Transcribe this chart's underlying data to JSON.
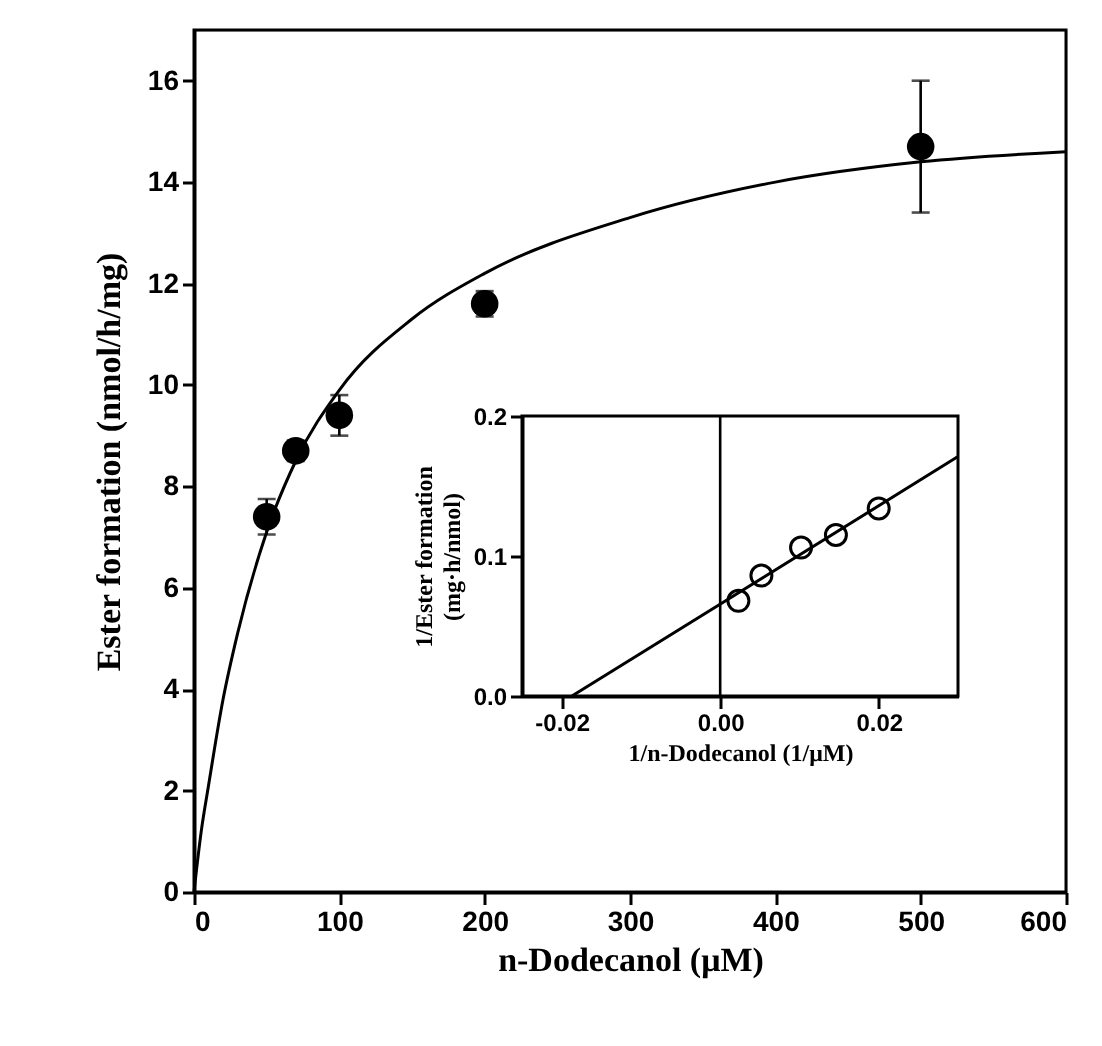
{
  "chart_data": [
    {
      "type": "scatter",
      "xlabel": "n-Dodecanol (μM)",
      "ylabel": "Ester formation (nmol/h/mg)",
      "xlim": [
        0,
        600
      ],
      "ylim": [
        0,
        17
      ],
      "xticks": [
        0,
        100,
        200,
        300,
        400,
        500,
        600
      ],
      "yticks": [
        0,
        2,
        4,
        6,
        8,
        10,
        12,
        14,
        16
      ],
      "grid": false,
      "marker": "circle",
      "series": [
        {
          "color": "#000000",
          "x": [
            50,
            70,
            100,
            200,
            500
          ],
          "values": [
            7.4,
            8.7,
            9.4,
            11.6,
            14.7
          ],
          "errors": [
            [
              7.05,
              7.75
            ],
            [
              8.5,
              8.9
            ],
            [
              9.0,
              9.8
            ],
            [
              11.35,
              11.85
            ],
            [
              13.4,
              16.0
            ]
          ]
        },
        {
          "type": "line",
          "color": "#000000",
          "marker": "none",
          "x": [
            0,
            5,
            10,
            20,
            30,
            50,
            70,
            100,
            150,
            200,
            300,
            400,
            500,
            600
          ],
          "values": [
            0,
            1.2,
            2.1,
            3.8,
            5.1,
            7.1,
            8.5,
            9.9,
            11.3,
            12.2,
            13.3,
            14.0,
            14.4,
            14.6
          ]
        }
      ]
    },
    {
      "type": "scatter",
      "xlabel": "1/n-Dodecanol (1/μM)",
      "ylabel": "1/Ester formation\n(mg·h/nmol)",
      "xlim": [
        -0.025,
        0.03
      ],
      "ylim": [
        0,
        0.2
      ],
      "xticks": [
        {
          "value": -0.02,
          "label": "-0.02"
        },
        {
          "value": 0,
          "label": "0.00"
        },
        {
          "value": 0.02,
          "label": "0.02"
        }
      ],
      "yticks": [
        {
          "value": 0,
          "label": "0.0"
        },
        0.1,
        0.2
      ],
      "grid": false,
      "marker": "circle",
      "series": [
        {
          "color": "#000000",
          "x": [
            0.0023,
            0.0052,
            0.0102,
            0.0146,
            0.02
          ],
          "values": [
            0.068,
            0.086,
            0.106,
            0.115,
            0.134
          ]
        },
        {
          "type": "line",
          "color": "#000000",
          "marker": "none",
          "x": [
            -0.0187,
            0.03
          ],
          "values": [
            0,
            0.171
          ]
        }
      ],
      "ref_lines": [
        {
          "axis": "x",
          "value": 0,
          "color": "#000000"
        }
      ]
    }
  ]
}
